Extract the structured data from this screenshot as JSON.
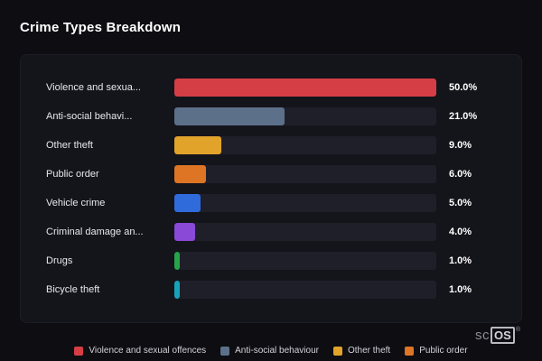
{
  "title": "Crime Types Breakdown",
  "chart_data": {
    "type": "bar",
    "orientation": "horizontal",
    "title": "Crime Types Breakdown",
    "xlabel": "",
    "ylabel": "",
    "max_value": 50,
    "grid": false,
    "legend_position": "bottom",
    "categories": [
      "Violence and sexual offences",
      "Anti-social behaviour",
      "Other theft",
      "Public order",
      "Vehicle crime",
      "Criminal damage and arson",
      "Drugs",
      "Bicycle theft"
    ],
    "display_labels": [
      "Violence and sexua...",
      "Anti-social behavi...",
      "Other theft",
      "Public order",
      "Vehicle crime",
      "Criminal damage an...",
      "Drugs",
      "Bicycle theft"
    ],
    "values": [
      50.0,
      21.0,
      9.0,
      6.0,
      5.0,
      4.0,
      1.0,
      1.0
    ],
    "value_labels": [
      "50.0%",
      "21.0%",
      "9.0%",
      "6.0%",
      "5.0%",
      "4.0%",
      "1.0%",
      "1.0%"
    ],
    "colors": [
      "#d63e46",
      "#5d7089",
      "#e2a32b",
      "#dd7524",
      "#2f6bdb",
      "#8a49d6",
      "#27a349",
      "#17a2b8"
    ],
    "legend": [
      {
        "label": "Violence and sexual offences",
        "color": "#d63e46"
      },
      {
        "label": "Anti-social behaviour",
        "color": "#5d7089"
      },
      {
        "label": "Other theft",
        "color": "#e2a32b"
      },
      {
        "label": "Public order",
        "color": "#dd7524"
      }
    ]
  },
  "watermark": {
    "prefix": "sc",
    "boxed": "OS",
    "reg": "®"
  }
}
